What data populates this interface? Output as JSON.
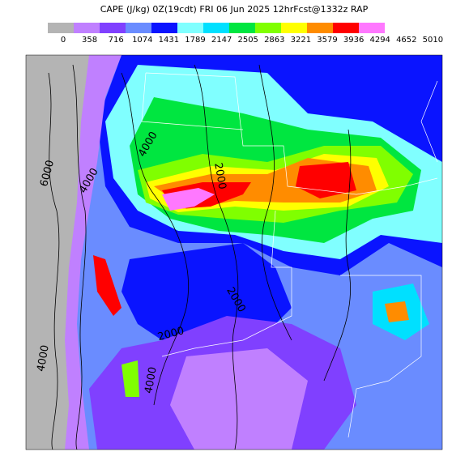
{
  "header": {
    "title": "CAPE (J/kg) 0Z(19cdt) FRI 06 Jun 2025 12hrFcst@1332z RAP"
  },
  "colorbar": {
    "colors": [
      "#b4b4b4",
      "#c080ff",
      "#8040ff",
      "#6a8cff",
      "#0a14ff",
      "#80ffff",
      "#00e0ff",
      "#00e640",
      "#80ff00",
      "#ffff00",
      "#ff8c00",
      "#ff0000",
      "#ff78ff"
    ],
    "labels": [
      "0",
      "358",
      "716",
      "1074",
      "1431",
      "1789",
      "2147",
      "2505",
      "2863",
      "3221",
      "3579",
      "3936",
      "4294",
      "4652",
      "5010"
    ]
  },
  "map": {
    "contour_labels": [
      "6000",
      "4000",
      "4000",
      "2000",
      "2000",
      "2000",
      "4000",
      "4000"
    ]
  }
}
